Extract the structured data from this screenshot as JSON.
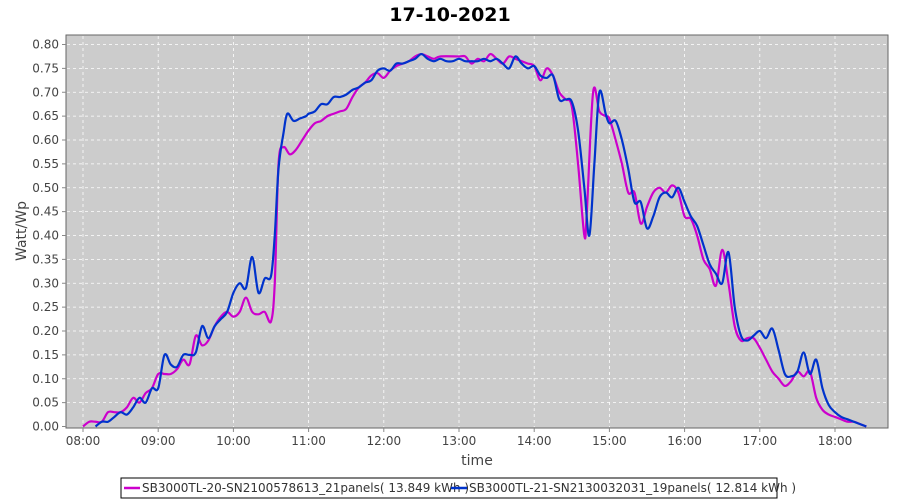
{
  "chart_data": {
    "type": "line",
    "title": "17-10-2021",
    "xlabel": "time",
    "ylabel": "Watt/Wp",
    "ylim": [
      0,
      0.8
    ],
    "xlim": [
      "07:48",
      "18:42"
    ],
    "grid": true,
    "legend_position": "bottom",
    "background": "#cccccc",
    "yticks": [
      "0.00",
      "0.05",
      "0.10",
      "0.15",
      "0.20",
      "0.25",
      "0.30",
      "0.35",
      "0.40",
      "0.45",
      "0.50",
      "0.55",
      "0.60",
      "0.65",
      "0.70",
      "0.75",
      "0.80"
    ],
    "xticks": [
      "08:00",
      "09:00",
      "10:00",
      "11:00",
      "12:00",
      "13:00",
      "14:00",
      "15:00",
      "16:00",
      "17:00",
      "18:00"
    ],
    "series": [
      {
        "name": "SB3000TL-20-SN2100578613_21panels( 13.849 kWh )",
        "color": "#cc00cc",
        "x": [
          "08:00",
          "08:05",
          "08:10",
          "08:15",
          "08:20",
          "08:25",
          "08:30",
          "08:35",
          "08:40",
          "08:45",
          "08:50",
          "08:55",
          "09:00",
          "09:05",
          "09:10",
          "09:15",
          "09:20",
          "09:25",
          "09:30",
          "09:35",
          "09:40",
          "09:45",
          "09:50",
          "09:55",
          "10:00",
          "10:05",
          "10:10",
          "10:15",
          "10:20",
          "10:25",
          "10:30",
          "10:33",
          "10:36",
          "10:40",
          "10:45",
          "10:50",
          "10:55",
          "11:00",
          "11:05",
          "11:10",
          "11:15",
          "11:20",
          "11:25",
          "11:30",
          "11:35",
          "11:40",
          "11:45",
          "11:50",
          "11:55",
          "12:00",
          "12:05",
          "12:10",
          "12:15",
          "12:20",
          "12:25",
          "12:30",
          "12:35",
          "12:40",
          "12:45",
          "13:00",
          "13:05",
          "13:10",
          "13:15",
          "13:20",
          "13:25",
          "13:30",
          "13:35",
          "13:40",
          "13:45",
          "13:50",
          "13:55",
          "14:00",
          "14:05",
          "14:10",
          "14:15",
          "14:20",
          "14:25",
          "14:30",
          "14:35",
          "14:40",
          "14:42",
          "14:47",
          "14:52",
          "14:57",
          "15:00",
          "15:05",
          "15:10",
          "15:15",
          "15:20",
          "15:25",
          "15:30",
          "15:35",
          "15:40",
          "15:45",
          "15:50",
          "15:55",
          "16:00",
          "16:05",
          "16:10",
          "16:15",
          "16:20",
          "16:25",
          "16:30",
          "16:35",
          "16:40",
          "16:45",
          "16:50",
          "16:55",
          "17:00",
          "17:05",
          "17:10",
          "17:15",
          "17:20",
          "17:25",
          "17:30",
          "17:35",
          "17:40",
          "17:45",
          "17:50",
          "17:55",
          "18:00",
          "18:05",
          "18:10",
          "18:15",
          "18:20",
          "18:25"
        ],
        "y": [
          0.0,
          0.01,
          0.01,
          0.01,
          0.03,
          0.03,
          0.03,
          0.04,
          0.06,
          0.05,
          0.07,
          0.08,
          0.11,
          0.11,
          0.11,
          0.12,
          0.14,
          0.13,
          0.19,
          0.17,
          0.18,
          0.21,
          0.23,
          0.24,
          0.23,
          0.24,
          0.27,
          0.24,
          0.235,
          0.24,
          0.22,
          0.3,
          0.55,
          0.585,
          0.57,
          0.58,
          0.6,
          0.62,
          0.635,
          0.64,
          0.65,
          0.655,
          0.66,
          0.665,
          0.69,
          0.71,
          0.72,
          0.735,
          0.74,
          0.73,
          0.745,
          0.755,
          0.76,
          0.765,
          0.775,
          0.78,
          0.775,
          0.77,
          0.775,
          0.775,
          0.775,
          0.76,
          0.77,
          0.765,
          0.78,
          0.77,
          0.76,
          0.775,
          0.77,
          0.765,
          0.76,
          0.755,
          0.725,
          0.75,
          0.735,
          0.7,
          0.685,
          0.67,
          0.55,
          0.4,
          0.45,
          0.7,
          0.66,
          0.65,
          0.645,
          0.6,
          0.55,
          0.49,
          0.49,
          0.425,
          0.46,
          0.49,
          0.5,
          0.49,
          0.505,
          0.49,
          0.44,
          0.435,
          0.4,
          0.35,
          0.33,
          0.295,
          0.37,
          0.3,
          0.21,
          0.18,
          0.185,
          0.185,
          0.165,
          0.14,
          0.115,
          0.1,
          0.085,
          0.095,
          0.115,
          0.105,
          0.115,
          0.06,
          0.035,
          0.025,
          0.02,
          0.015,
          0.01,
          0.01,
          0.005,
          0.0
        ]
      },
      {
        "name": "SB3000TL-21-SN2130032031_19panels( 12.814 kWh )",
        "color": "#0033cc",
        "x": [
          "08:10",
          "08:15",
          "08:20",
          "08:25",
          "08:30",
          "08:35",
          "08:40",
          "08:45",
          "08:50",
          "08:55",
          "09:00",
          "09:05",
          "09:10",
          "09:15",
          "09:20",
          "09:25",
          "09:30",
          "09:35",
          "09:40",
          "09:45",
          "09:50",
          "09:55",
          "10:00",
          "10:05",
          "10:10",
          "10:15",
          "10:20",
          "10:25",
          "10:30",
          "10:33",
          "10:36",
          "10:40",
          "10:43",
          "10:48",
          "10:53",
          "10:58",
          "11:00",
          "11:05",
          "11:10",
          "11:15",
          "11:20",
          "11:25",
          "11:30",
          "11:35",
          "11:40",
          "11:45",
          "11:50",
          "11:55",
          "12:00",
          "12:05",
          "12:10",
          "12:15",
          "12:20",
          "12:25",
          "12:30",
          "12:35",
          "12:40",
          "12:45",
          "12:50",
          "12:55",
          "13:00",
          "13:05",
          "13:10",
          "13:15",
          "13:20",
          "13:25",
          "13:30",
          "13:35",
          "13:40",
          "13:45",
          "13:50",
          "13:55",
          "14:00",
          "14:05",
          "14:10",
          "14:15",
          "14:20",
          "14:25",
          "14:30",
          "14:35",
          "14:40",
          "14:44",
          "14:48",
          "14:52",
          "14:57",
          "15:00",
          "15:05",
          "15:10",
          "15:15",
          "15:20",
          "15:25",
          "15:30",
          "15:35",
          "15:40",
          "15:45",
          "15:50",
          "15:55",
          "16:00",
          "16:05",
          "16:10",
          "16:15",
          "16:20",
          "16:25",
          "16:30",
          "16:35",
          "16:40",
          "16:45",
          "16:50",
          "16:55",
          "17:00",
          "17:05",
          "17:10",
          "17:15",
          "17:20",
          "17:25",
          "17:30",
          "17:35",
          "17:40",
          "17:45",
          "17:50",
          "17:55",
          "18:00",
          "18:05",
          "18:10",
          "18:15",
          "18:20",
          "18:25"
        ],
        "y": [
          0.0,
          0.01,
          0.01,
          0.02,
          0.03,
          0.025,
          0.04,
          0.06,
          0.05,
          0.08,
          0.08,
          0.15,
          0.13,
          0.125,
          0.15,
          0.15,
          0.155,
          0.21,
          0.185,
          0.21,
          0.225,
          0.24,
          0.28,
          0.3,
          0.29,
          0.355,
          0.28,
          0.31,
          0.315,
          0.4,
          0.54,
          0.615,
          0.655,
          0.64,
          0.645,
          0.65,
          0.655,
          0.66,
          0.675,
          0.675,
          0.69,
          0.69,
          0.695,
          0.705,
          0.71,
          0.72,
          0.725,
          0.745,
          0.75,
          0.745,
          0.76,
          0.76,
          0.765,
          0.77,
          0.78,
          0.77,
          0.765,
          0.77,
          0.765,
          0.765,
          0.77,
          0.765,
          0.765,
          0.765,
          0.77,
          0.765,
          0.77,
          0.76,
          0.75,
          0.775,
          0.76,
          0.75,
          0.755,
          0.735,
          0.73,
          0.735,
          0.685,
          0.685,
          0.68,
          0.62,
          0.5,
          0.4,
          0.55,
          0.7,
          0.655,
          0.635,
          0.64,
          0.6,
          0.54,
          0.47,
          0.47,
          0.415,
          0.44,
          0.48,
          0.49,
          0.48,
          0.5,
          0.47,
          0.44,
          0.42,
          0.38,
          0.34,
          0.32,
          0.3,
          0.365,
          0.25,
          0.19,
          0.18,
          0.19,
          0.2,
          0.185,
          0.205,
          0.16,
          0.11,
          0.105,
          0.115,
          0.155,
          0.11,
          0.14,
          0.08,
          0.045,
          0.03,
          0.02,
          0.015,
          0.01,
          0.005,
          0.0
        ]
      }
    ]
  }
}
